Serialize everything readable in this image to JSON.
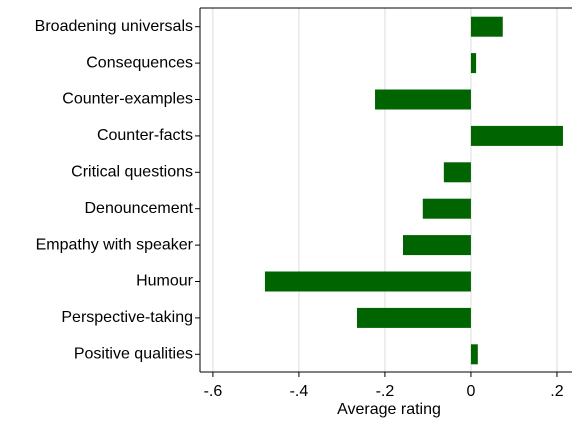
{
  "chart_data": {
    "type": "barh",
    "xlabel": "Average rating",
    "categories": [
      "Broadening universals",
      "Consequences",
      "Counter-examples",
      "Counter-facts",
      "Critical questions",
      "Denouncement",
      "Empathy with speaker",
      "Humour",
      "Perspective-taking",
      "Positive qualities"
    ],
    "values": [
      0.074,
      0.012,
      -0.223,
      0.214,
      -0.063,
      -0.112,
      -0.158,
      -0.479,
      -0.265,
      0.016
    ],
    "color": "#006400",
    "xlim": [
      -0.63,
      0.235
    ],
    "xticks": [
      {
        "value": -0.6,
        "label": "-.6"
      },
      {
        "value": -0.4,
        "label": "-.4"
      },
      {
        "value": -0.2,
        "label": "-.2"
      },
      0,
      {
        "value": 0.2,
        "label": ".2"
      }
    ],
    "grid": true
  }
}
